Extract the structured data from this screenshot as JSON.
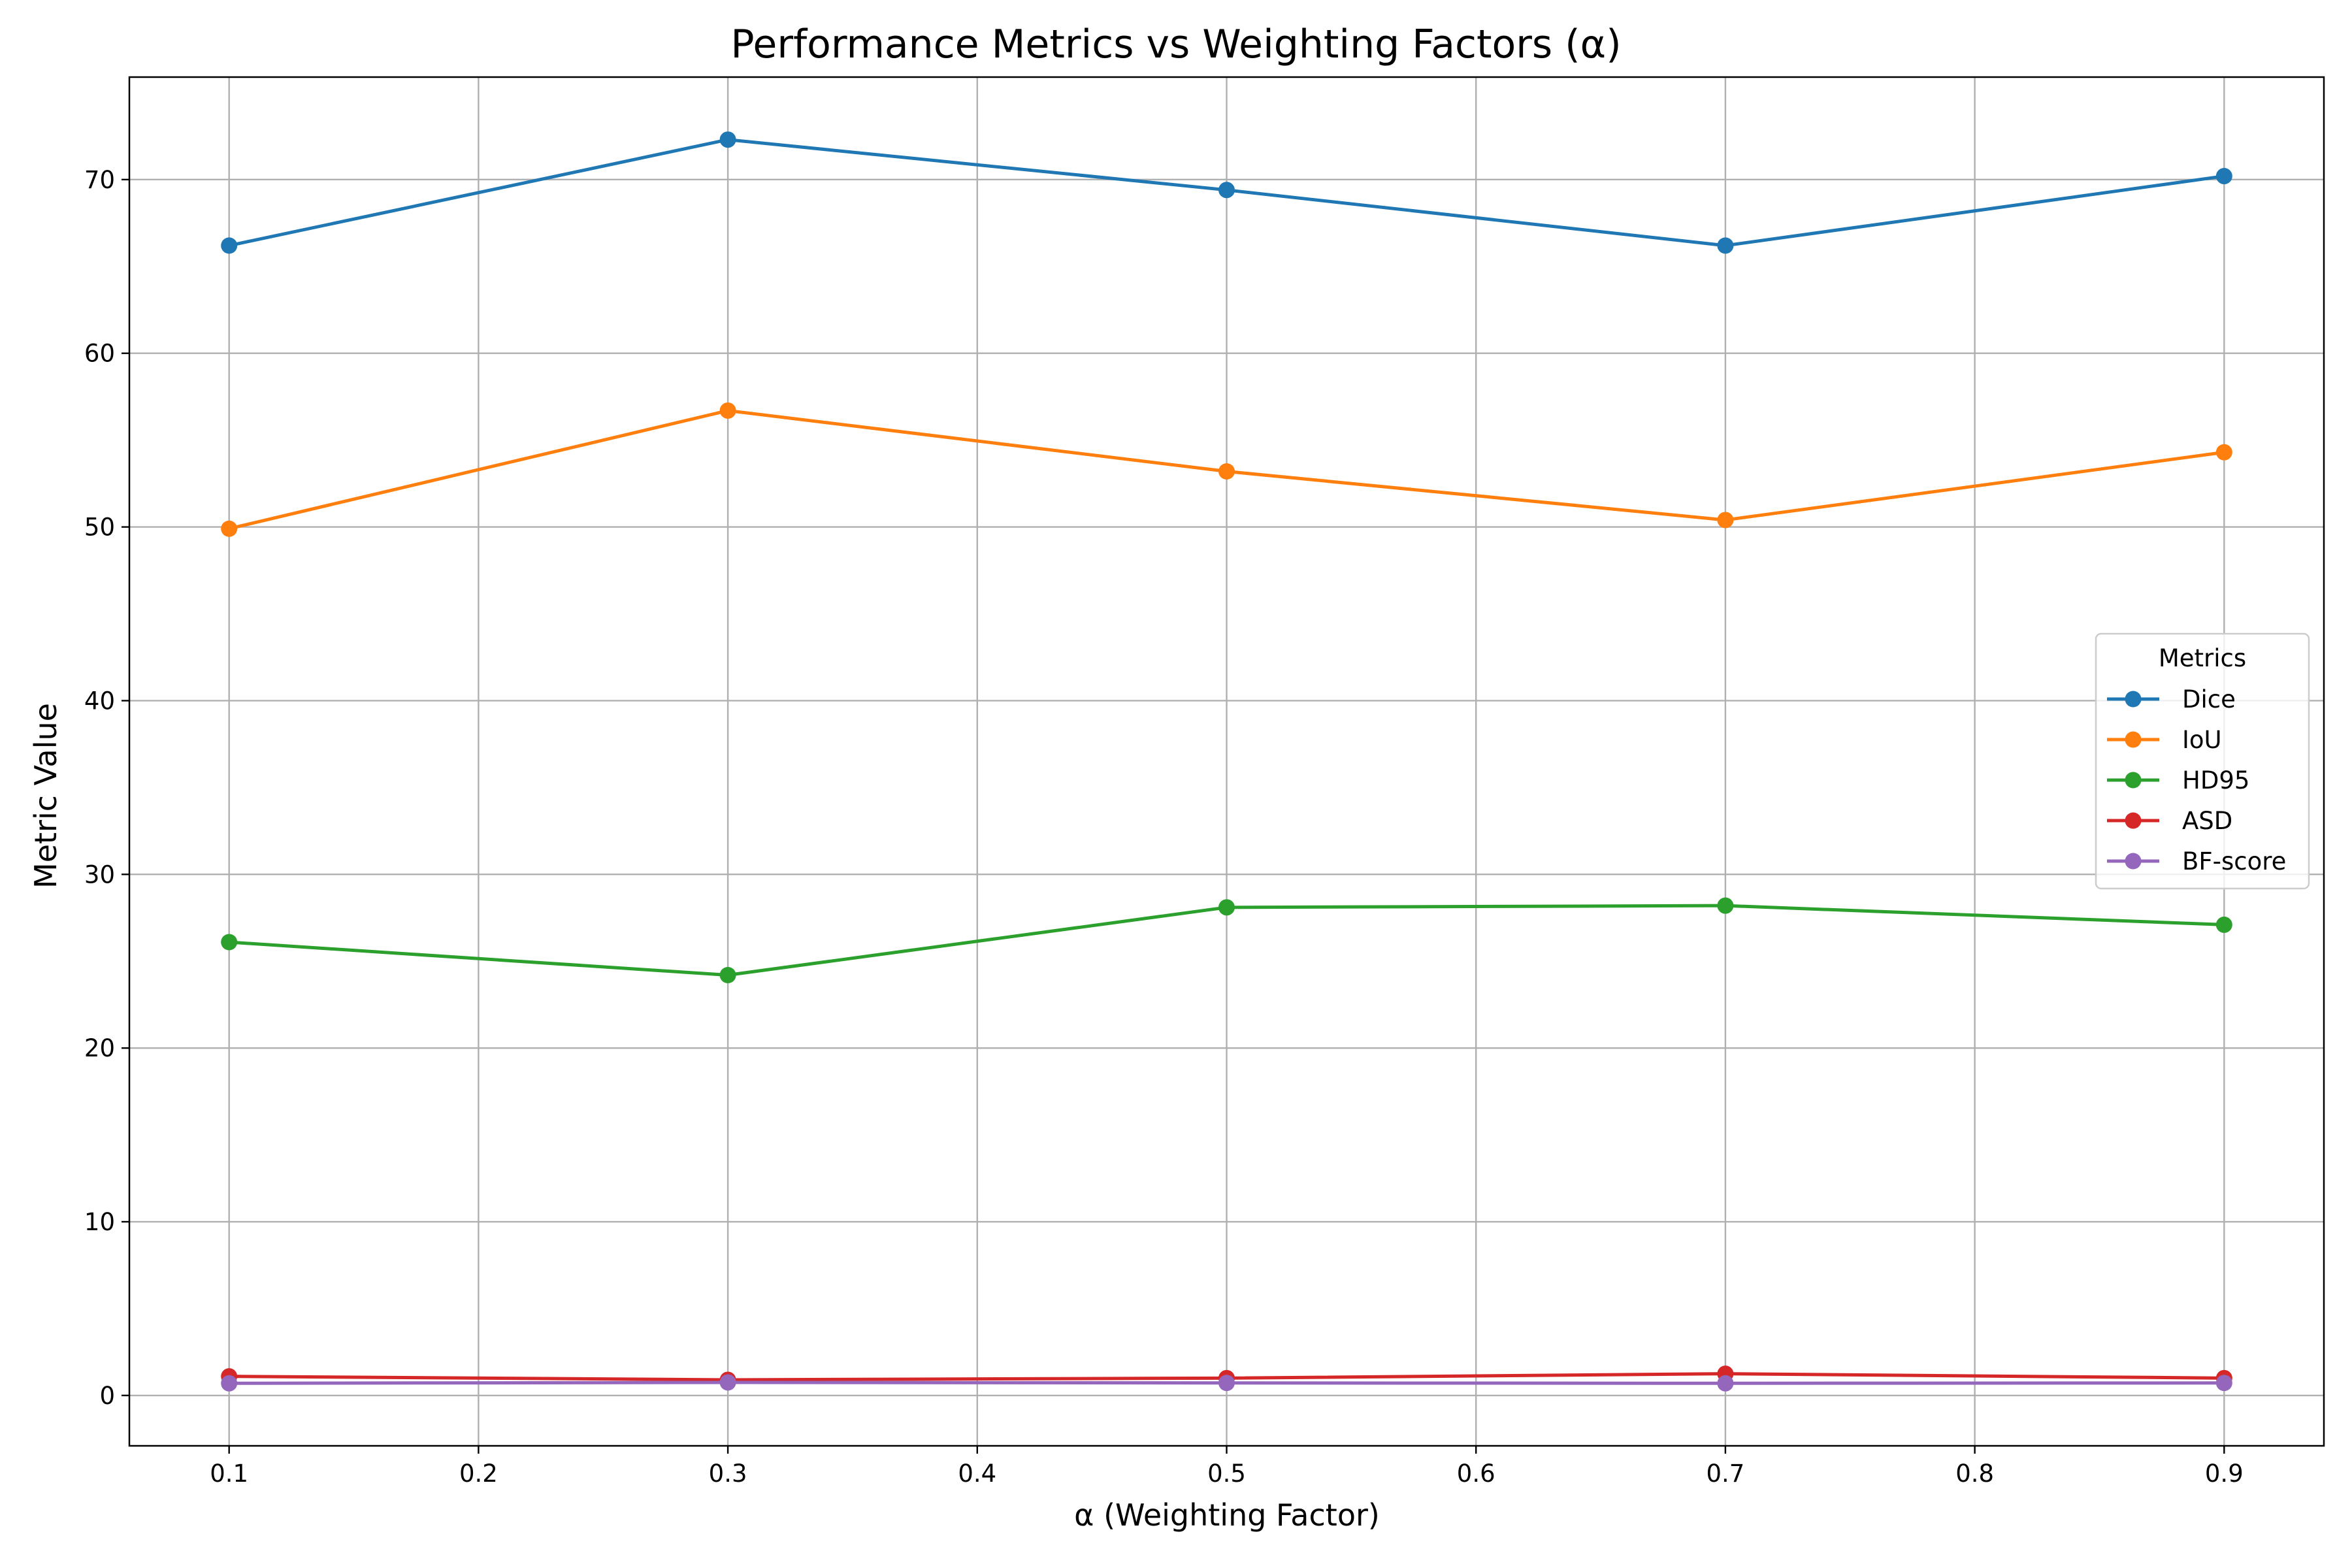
{
  "chart_data": {
    "type": "line",
    "title": "Performance Metrics vs Weighting Factors (α)",
    "xlabel": "α (Weighting Factor)",
    "ylabel": "Metric Value",
    "x": [
      0.1,
      0.3,
      0.5,
      0.7,
      0.9
    ],
    "xlim": [
      0.06,
      0.94
    ],
    "ylim": [
      -2.9,
      75.9
    ],
    "xticks": [
      0.1,
      0.2,
      0.3,
      0.4,
      0.5,
      0.6,
      0.7,
      0.8,
      0.9
    ],
    "xtick_labels": [
      "0.1",
      "0.2",
      "0.3",
      "0.4",
      "0.5",
      "0.6",
      "0.7",
      "0.8",
      "0.9"
    ],
    "yticks": [
      0,
      10,
      20,
      30,
      40,
      50,
      60,
      70
    ],
    "ytick_labels": [
      "0",
      "10",
      "20",
      "30",
      "40",
      "50",
      "60",
      "70"
    ],
    "grid": true,
    "legend": {
      "title": "Metrics",
      "placement": "center-right"
    },
    "series": [
      {
        "name": "Dice",
        "color": "#1f77b4",
        "values": [
          66.2,
          72.3,
          69.4,
          66.2,
          70.2
        ]
      },
      {
        "name": "IoU",
        "color": "#ff7f0e",
        "values": [
          49.9,
          56.7,
          53.2,
          50.4,
          54.3
        ]
      },
      {
        "name": "HD95",
        "color": "#2ca02c",
        "values": [
          26.1,
          24.2,
          28.1,
          28.2,
          27.1
        ]
      },
      {
        "name": "ASD",
        "color": "#d62728",
        "values": [
          1.1,
          0.9,
          1.0,
          1.25,
          1.0
        ]
      },
      {
        "name": "BF-score",
        "color": "#9467bd",
        "values": [
          0.7,
          0.75,
          0.72,
          0.7,
          0.72
        ]
      }
    ]
  }
}
